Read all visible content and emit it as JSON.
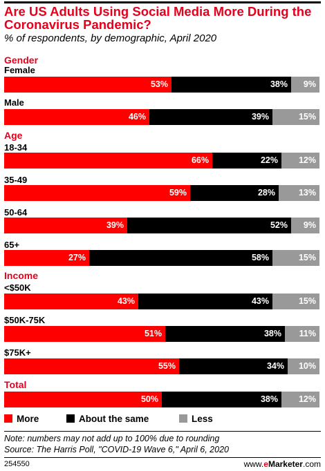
{
  "chart_data": {
    "type": "bar",
    "stacked": true,
    "orientation": "horizontal",
    "title": "Are US Adults Using Social Media More During the Coronavirus Pandemic?",
    "subtitle": "% of respondents, by demographic, April 2020",
    "groups": [
      {
        "label": "Gender",
        "rows": [
          {
            "label": "Female",
            "values": [
              53,
              38,
              9
            ]
          },
          {
            "label": "Male",
            "values": [
              46,
              39,
              15
            ]
          }
        ]
      },
      {
        "label": "Age",
        "rows": [
          {
            "label": "18-34",
            "values": [
              66,
              22,
              12
            ]
          },
          {
            "label": "35-49",
            "values": [
              59,
              28,
              13
            ]
          },
          {
            "label": "50-64",
            "values": [
              39,
              52,
              9
            ]
          },
          {
            "label": "65+",
            "values": [
              27,
              58,
              15
            ]
          }
        ]
      },
      {
        "label": "Income",
        "rows": [
          {
            "label": "<$50K",
            "values": [
              43,
              43,
              15
            ]
          },
          {
            "label": "$50K-75K",
            "values": [
              51,
              38,
              11
            ]
          },
          {
            "label": "$75K+",
            "values": [
              55,
              34,
              10
            ]
          }
        ]
      },
      {
        "label": "Total",
        "rows": [
          {
            "label": "",
            "values": [
              50,
              38,
              12
            ]
          }
        ]
      }
    ],
    "series": [
      {
        "name": "More",
        "color": "#ff0000"
      },
      {
        "name": "About the same",
        "color": "#000000"
      },
      {
        "name": "Less",
        "color": "#999999"
      }
    ],
    "value_suffix": "%",
    "legend_position": "bottom-left",
    "grid": false
  },
  "notes": [
    "Note: numbers may not add up to 100% due to rounding",
    "Source: The Harris Poll, \"COVID-19 Wave 6,\" April 6, 2020"
  ],
  "footer": {
    "chart_id": "254550",
    "brand_prefix": "www.",
    "brand_e": "e",
    "brand_rest": "Marketer",
    "brand_suffix": ".com"
  },
  "colors": {
    "accent": "#e5001c"
  }
}
